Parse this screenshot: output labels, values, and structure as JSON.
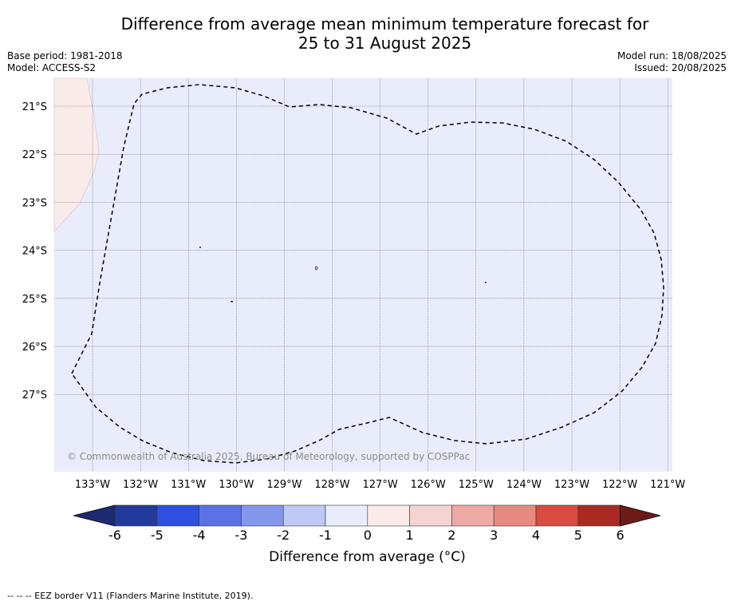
{
  "title": {
    "line1": "Difference from average mean minimum temperature forecast for",
    "line2": "25 to 31 August 2025"
  },
  "meta": {
    "base_period": "Base period: 1981-2018",
    "model": "Model: ACCESS-S2",
    "model_run": "Model run: 18/08/2025",
    "issued": "Issued: 20/08/2025"
  },
  "map": {
    "lat_labels": [
      "21°S",
      "22°S",
      "23°S",
      "24°S",
      "25°S",
      "26°S",
      "27°S"
    ],
    "lon_labels": [
      "133°W",
      "132°W",
      "131°W",
      "130°W",
      "129°W",
      "128°W",
      "127°W",
      "126°W",
      "125°W",
      "124°W",
      "123°W",
      "122°W",
      "121°W"
    ],
    "background_color": "#e9ecfa",
    "warm_patch_color": "#fbebe8",
    "eez_line_color": "#000000",
    "copyright": "© Commonwealth of Australia 2025, Bureau of Meteorology, supported by COSPPac"
  },
  "colorbar": {
    "tick_labels": [
      "-6",
      "-5",
      "-4",
      "-3",
      "-2",
      "-1",
      "0",
      "1",
      "2",
      "3",
      "4",
      "5",
      "6"
    ],
    "colors": [
      "#223a9c",
      "#2c50e0",
      "#5b72e6",
      "#8497ec",
      "#c0c8f5",
      "#e9ecfa",
      "#fbebe8",
      "#f3d4d1",
      "#eda9a3",
      "#e68a80",
      "#d94a3f",
      "#a92a22"
    ],
    "low_extend_color": "#1d2a72",
    "high_extend_color": "#6e1a16",
    "label": "Difference from average (°C)"
  },
  "footnote": "--  --  -- EEZ border V11 (Flanders Marine Institute, 2019)."
}
